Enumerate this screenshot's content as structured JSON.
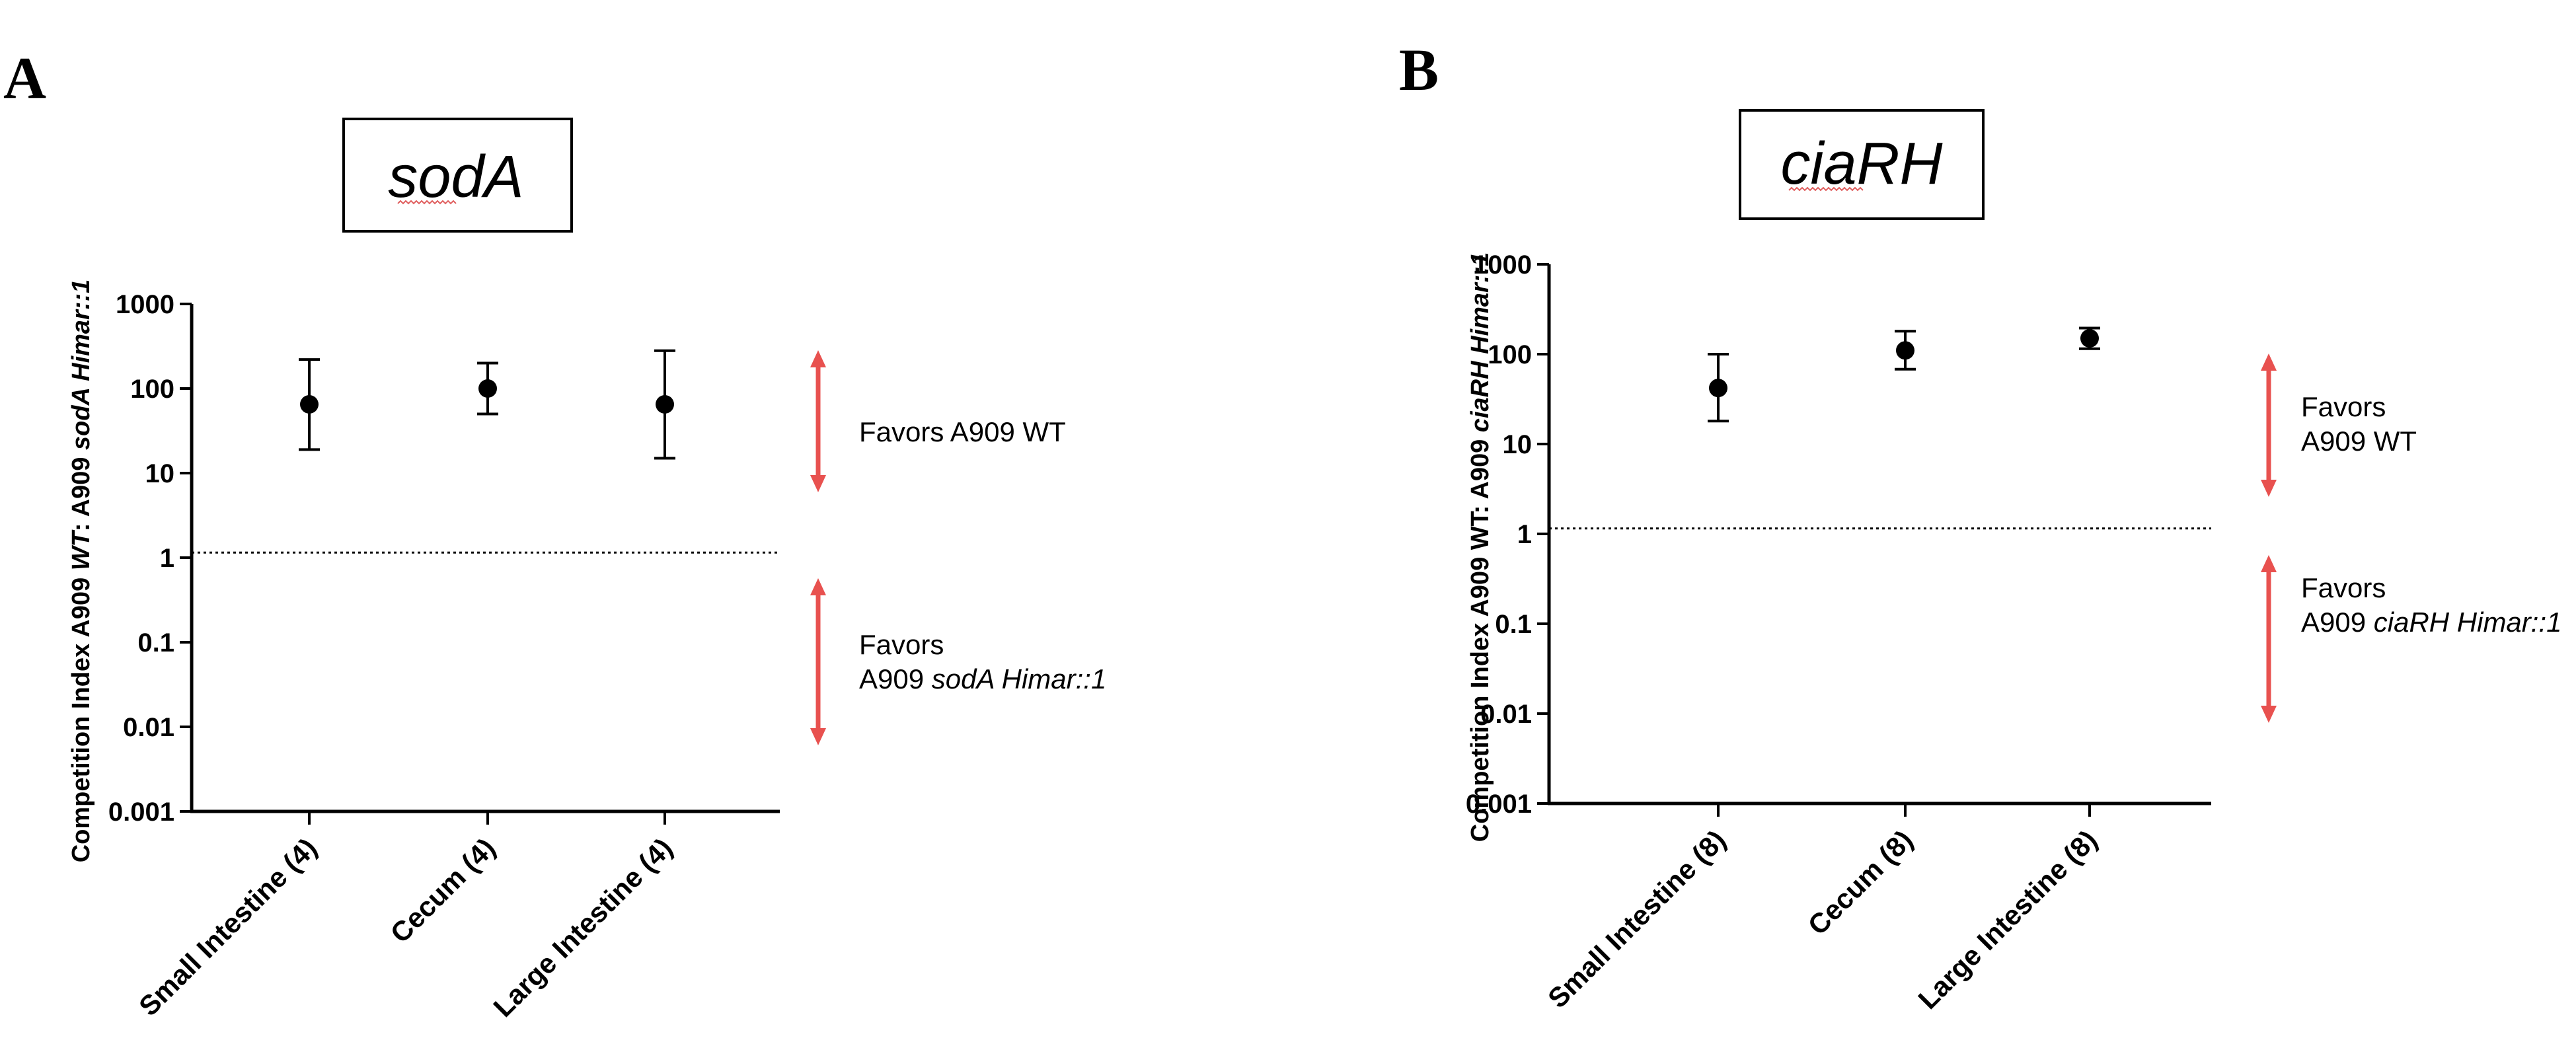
{
  "chart_data": [
    {
      "type": "scatter",
      "panel": "A",
      "title": "sodA",
      "ylabel_parts": [
        {
          "text": "Competition Index A909 ",
          "italic": false
        },
        {
          "text": "WT",
          "italic": true
        },
        {
          "text": ": A909 ",
          "italic": false
        },
        {
          "text": "sodA Himar::1",
          "italic": true
        }
      ],
      "yscale": "log",
      "ylim": [
        0.001,
        1000
      ],
      "yticks": [
        1000,
        100,
        10,
        1,
        0.1,
        0.01,
        0.001
      ],
      "ytick_labels": [
        "1000",
        "100",
        "10",
        "1",
        "0.1",
        "0.01",
        "0.001"
      ],
      "categories": [
        "Small Intestine (4)",
        "Cecum (4)",
        "Large Intestine (4)"
      ],
      "values": [
        65,
        100,
        65
      ],
      "error_low": [
        19,
        50,
        15
      ],
      "error_high": [
        220,
        200,
        280
      ],
      "reference_line": 1.15,
      "annotations": {
        "up": {
          "lines": [
            [
              {
                "text": "Favors A909 WT",
                "italic": false
              }
            ]
          ],
          "color": "#e8514f"
        },
        "down": {
          "lines": [
            [
              {
                "text": "Favors",
                "italic": false
              }
            ],
            [
              {
                "text": "A909 ",
                "italic": false
              },
              {
                "text": "sodA Himar::1",
                "italic": true
              }
            ]
          ],
          "color": "#e8514f"
        }
      }
    },
    {
      "type": "scatter",
      "panel": "B",
      "title": "ciaRH",
      "ylabel_parts": [
        {
          "text": "Competition Index A909 WT: A909 ",
          "italic": false
        },
        {
          "text": "ciaRH Himar::1",
          "italic": true
        }
      ],
      "yscale": "log",
      "ylim": [
        0.001,
        1000
      ],
      "yticks": [
        1000,
        100,
        10,
        1,
        0.1,
        0.01,
        0.001
      ],
      "ytick_labels": [
        "1000",
        "100",
        "10",
        "1",
        "0.1",
        "0.01",
        "0.001"
      ],
      "categories": [
        "Small Intestine (8)",
        "Cecum (8)",
        "Large Intestine (8)"
      ],
      "values": [
        42,
        110,
        150
      ],
      "error_low": [
        18,
        68,
        115
      ],
      "error_high": [
        100,
        180,
        195
      ],
      "reference_line": 1.15,
      "annotations": {
        "up": {
          "lines": [
            [
              {
                "text": "Favors",
                "italic": false
              }
            ],
            [
              {
                "text": "A909 WT",
                "italic": false
              }
            ]
          ],
          "color": "#e8514f"
        },
        "down": {
          "lines": [
            [
              {
                "text": "Favors",
                "italic": false
              }
            ],
            [
              {
                "text": "A909 ",
                "italic": false
              },
              {
                "text": "ciaRH Himar::1",
                "italic": true
              }
            ]
          ],
          "color": "#e8514f"
        }
      }
    }
  ]
}
